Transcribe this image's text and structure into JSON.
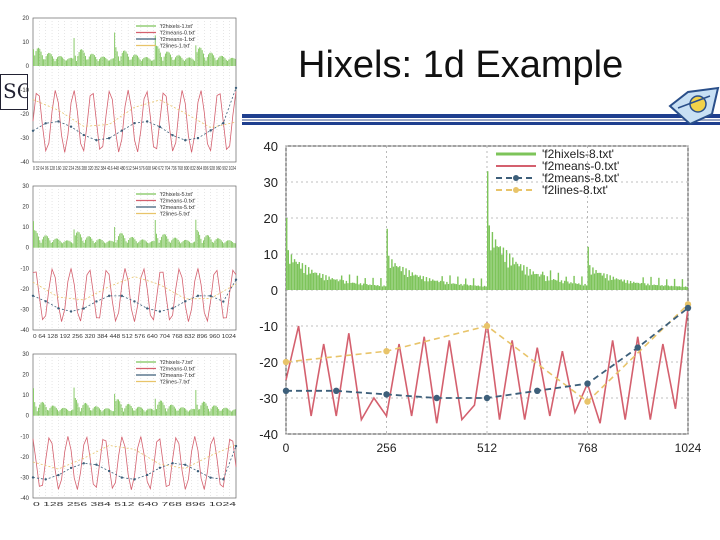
{
  "slide": {
    "title": "Hixels: 1d Example",
    "logo_left_text": "SC"
  },
  "colors": {
    "hixels": "#7dc45a",
    "means": "#d4606e",
    "means_dash": "#3d5f7a",
    "lines": "#e8c46a",
    "rule_blue": "#1f3f8f"
  },
  "icons": [
    "left-logo-icon",
    "right-logo-icon"
  ],
  "chart_data": [
    {
      "type": "line",
      "panel": "main",
      "title": "",
      "xlabel": "",
      "ylabel": "",
      "xlim": [
        0,
        1024
      ],
      "ylim": [
        -40,
        40
      ],
      "xticks": [
        0,
        256,
        512,
        768,
        1024
      ],
      "yticks": [
        40,
        30,
        20,
        10,
        0,
        -10,
        -20,
        -30,
        -40
      ],
      "grid": true,
      "legend_position": "top-right",
      "series": [
        {
          "name": "'f2hixels-8.txt'",
          "style": "bars",
          "peaks": [
            0,
            256,
            512,
            768
          ],
          "peak_values": [
            20,
            17,
            33,
            12
          ]
        },
        {
          "name": "'f2means-0.txt'",
          "style": "solid",
          "x": [
            0,
            32,
            64,
            96,
            128,
            160,
            192,
            224,
            256,
            288,
            320,
            352,
            384,
            416,
            448,
            480,
            512,
            544,
            576,
            608,
            640,
            672,
            704,
            736,
            768,
            800,
            832,
            864,
            896,
            928,
            960,
            992,
            1024
          ],
          "y": [
            -25,
            -10,
            -35,
            -15,
            -35,
            -12,
            -36,
            -30,
            -35,
            -15,
            -35,
            -13,
            -37,
            -14,
            -36,
            -32,
            -9,
            -36,
            -14,
            -36,
            -16,
            -35,
            -17,
            -34,
            -26,
            -37,
            -14,
            -36,
            -13,
            -36,
            -15,
            -33,
            -5
          ]
        },
        {
          "name": "'f2means-8.txt'",
          "style": "dash-dot",
          "x": [
            0,
            128,
            256,
            384,
            512,
            640,
            768,
            896,
            1024
          ],
          "y": [
            -28,
            -28,
            -29,
            -30,
            -30,
            -28,
            -26,
            -16,
            -5
          ]
        },
        {
          "name": "'f2lines-8.txt'",
          "style": "dash-dot",
          "x": [
            0,
            256,
            512,
            768,
            1024
          ],
          "y": [
            -20,
            -17,
            -10,
            -31,
            -4
          ]
        }
      ]
    },
    {
      "type": "line",
      "panel": "thumb-1",
      "xlim": [
        0,
        1024
      ],
      "ylim": [
        -40,
        20
      ],
      "yticks": [
        20,
        10,
        0,
        -10,
        -20,
        -30,
        -40
      ],
      "xtick_text": "0 32 64 96 128 160 192 224 256 288 320 352 384 416 448 480 512 544 576 608 640 672 704 736 768 800 832 864 896 928 960 992 1024",
      "legend": [
        "'f2hixels-1.txt'",
        "'f2means-0.txt'",
        "'f2means-1.txt'",
        "'f2lines-1.txt'"
      ]
    },
    {
      "type": "line",
      "panel": "thumb-2",
      "xlim": [
        0,
        1024
      ],
      "ylim": [
        -40,
        30
      ],
      "yticks": [
        30,
        20,
        10,
        0,
        -10,
        -20,
        -30,
        -40
      ],
      "xtick_text": "0 64 128 192 256 320 384 448 512 576 640 704 768 832 896 960 1024",
      "legend": [
        "'f2hixels-5.txt'",
        "'f2means-0.txt'",
        "'f2means-5.txt'",
        "'f2lines-5.txt'"
      ]
    },
    {
      "type": "line",
      "panel": "thumb-3",
      "xlim": [
        0,
        1024
      ],
      "ylim": [
        -40,
        30
      ],
      "yticks": [
        30,
        20,
        10,
        0,
        -10,
        -20,
        -30,
        -40
      ],
      "xtick_text": "0 128 256 384 512 640 768 896 1024",
      "legend": [
        "'f2hixels-7.txt'",
        "'f2means-0.txt'",
        "'f2means-7.txt'",
        "'f2lines-7.txt'"
      ]
    }
  ]
}
